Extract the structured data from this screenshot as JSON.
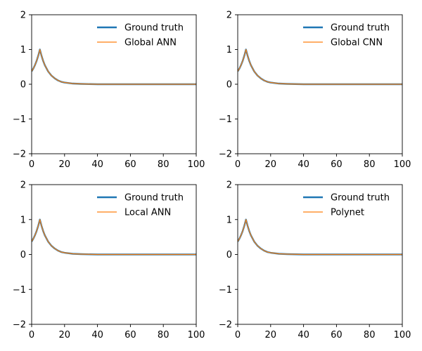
{
  "chart_data": [
    {
      "type": "line",
      "xlim": [
        0,
        100
      ],
      "ylim": [
        -2,
        2
      ],
      "xticks": [
        "0",
        "20",
        "40",
        "60",
        "80",
        "100"
      ],
      "yticks": [
        "2",
        "1",
        "0",
        "−1",
        "−2"
      ],
      "grid": false,
      "legend_position": "top-right",
      "x": [
        0,
        1,
        2,
        3,
        4,
        5,
        6,
        7,
        8,
        10,
        12,
        14,
        16,
        18,
        20,
        25,
        30,
        40,
        50,
        60,
        70,
        80,
        90,
        100
      ],
      "series": [
        {
          "name": "Ground truth",
          "color": "#1f77b4",
          "values": [
            0.37,
            0.45,
            0.55,
            0.67,
            0.82,
            1.0,
            0.82,
            0.67,
            0.55,
            0.37,
            0.25,
            0.17,
            0.11,
            0.07,
            0.05,
            0.02,
            0.01,
            0.0,
            0.0,
            0.0,
            0.0,
            0.0,
            0.0,
            0.0
          ]
        },
        {
          "name": "Global ANN",
          "color": "#ff7f0e",
          "values": [
            0.37,
            0.45,
            0.55,
            0.67,
            0.82,
            1.0,
            0.82,
            0.67,
            0.55,
            0.37,
            0.25,
            0.17,
            0.11,
            0.07,
            0.05,
            0.02,
            0.01,
            0.0,
            0.0,
            0.0,
            0.0,
            0.0,
            0.0,
            0.0
          ]
        }
      ]
    },
    {
      "type": "line",
      "xlim": [
        0,
        100
      ],
      "ylim": [
        -2,
        2
      ],
      "xticks": [
        "0",
        "20",
        "40",
        "60",
        "80",
        "100"
      ],
      "yticks": [
        "2",
        "1",
        "0",
        "−1",
        "−2"
      ],
      "grid": false,
      "legend_position": "top-right",
      "x": [
        0,
        1,
        2,
        3,
        4,
        5,
        6,
        7,
        8,
        10,
        12,
        14,
        16,
        18,
        20,
        25,
        30,
        40,
        50,
        60,
        70,
        80,
        90,
        100
      ],
      "series": [
        {
          "name": "Ground truth",
          "color": "#1f77b4",
          "values": [
            0.37,
            0.45,
            0.55,
            0.67,
            0.82,
            1.0,
            0.82,
            0.67,
            0.55,
            0.37,
            0.25,
            0.17,
            0.11,
            0.07,
            0.05,
            0.02,
            0.01,
            0.0,
            0.0,
            0.0,
            0.0,
            0.0,
            0.0,
            0.0
          ]
        },
        {
          "name": "Global CNN",
          "color": "#ff7f0e",
          "values": [
            0.37,
            0.45,
            0.55,
            0.67,
            0.82,
            1.0,
            0.82,
            0.67,
            0.55,
            0.37,
            0.25,
            0.17,
            0.11,
            0.07,
            0.05,
            0.02,
            0.01,
            0.0,
            0.0,
            0.0,
            0.0,
            0.0,
            0.0,
            0.0
          ]
        }
      ]
    },
    {
      "type": "line",
      "xlim": [
        0,
        100
      ],
      "ylim": [
        -2,
        2
      ],
      "xticks": [
        "0",
        "20",
        "40",
        "60",
        "80",
        "100"
      ],
      "yticks": [
        "2",
        "1",
        "0",
        "−1",
        "−2"
      ],
      "grid": false,
      "legend_position": "top-right",
      "x": [
        0,
        1,
        2,
        3,
        4,
        5,
        6,
        7,
        8,
        10,
        12,
        14,
        16,
        18,
        20,
        25,
        30,
        40,
        50,
        60,
        70,
        80,
        90,
        100
      ],
      "series": [
        {
          "name": "Ground truth",
          "color": "#1f77b4",
          "values": [
            0.37,
            0.45,
            0.55,
            0.67,
            0.82,
            1.0,
            0.82,
            0.67,
            0.55,
            0.37,
            0.25,
            0.17,
            0.11,
            0.07,
            0.05,
            0.02,
            0.01,
            0.0,
            0.0,
            0.0,
            0.0,
            0.0,
            0.0,
            0.0
          ]
        },
        {
          "name": "Local ANN",
          "color": "#ff7f0e",
          "values": [
            0.37,
            0.45,
            0.55,
            0.67,
            0.82,
            1.0,
            0.82,
            0.67,
            0.55,
            0.37,
            0.25,
            0.17,
            0.11,
            0.07,
            0.05,
            0.02,
            0.01,
            0.0,
            0.0,
            0.0,
            0.0,
            0.0,
            0.0,
            0.0
          ]
        }
      ]
    },
    {
      "type": "line",
      "xlim": [
        0,
        100
      ],
      "ylim": [
        -2,
        2
      ],
      "xticks": [
        "0",
        "20",
        "40",
        "60",
        "80",
        "100"
      ],
      "yticks": [
        "2",
        "1",
        "0",
        "−1",
        "−2"
      ],
      "grid": false,
      "legend_position": "top-right",
      "x": [
        0,
        1,
        2,
        3,
        4,
        5,
        6,
        7,
        8,
        10,
        12,
        14,
        16,
        18,
        20,
        25,
        30,
        40,
        50,
        60,
        70,
        80,
        90,
        100
      ],
      "series": [
        {
          "name": "Ground truth",
          "color": "#1f77b4",
          "values": [
            0.37,
            0.45,
            0.55,
            0.67,
            0.82,
            1.0,
            0.82,
            0.67,
            0.55,
            0.37,
            0.25,
            0.17,
            0.11,
            0.07,
            0.05,
            0.02,
            0.01,
            0.0,
            0.0,
            0.0,
            0.0,
            0.0,
            0.0,
            0.0
          ]
        },
        {
          "name": "Polynet",
          "color": "#ff7f0e",
          "values": [
            0.37,
            0.45,
            0.55,
            0.67,
            0.82,
            1.0,
            0.82,
            0.67,
            0.55,
            0.37,
            0.25,
            0.17,
            0.11,
            0.07,
            0.05,
            0.02,
            0.01,
            0.0,
            0.0,
            0.0,
            0.0,
            0.0,
            0.0,
            0.0
          ]
        }
      ]
    }
  ]
}
